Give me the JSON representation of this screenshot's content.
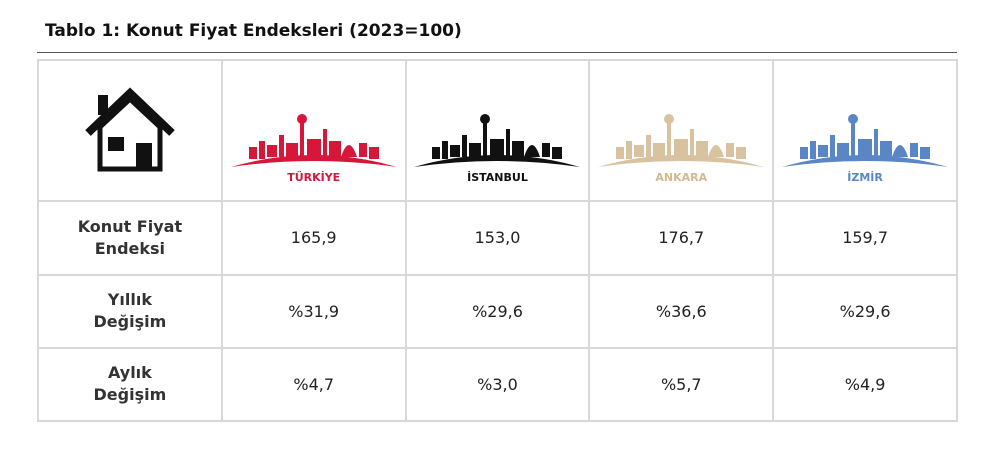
{
  "header": {
    "title": "Tablo 1: Konut Fiyat Endeksleri (2023=100)"
  },
  "table": {
    "columns": [
      "TÜRKİYE",
      "İSTANBUL",
      "ANKARA",
      "İZMİR"
    ],
    "rows": [
      [
        "Konut Fiyat Endeksi",
        "165,9",
        "153,0",
        "176,7",
        "159,7"
      ],
      [
        "Yıllık Değişim",
        "%31,9",
        "%29,6",
        "%36,6",
        "%29,6"
      ],
      [
        "Aylık Değişim",
        "%4,7",
        "%3,0",
        "%5,7",
        "%4,9"
      ]
    ]
  }
}
